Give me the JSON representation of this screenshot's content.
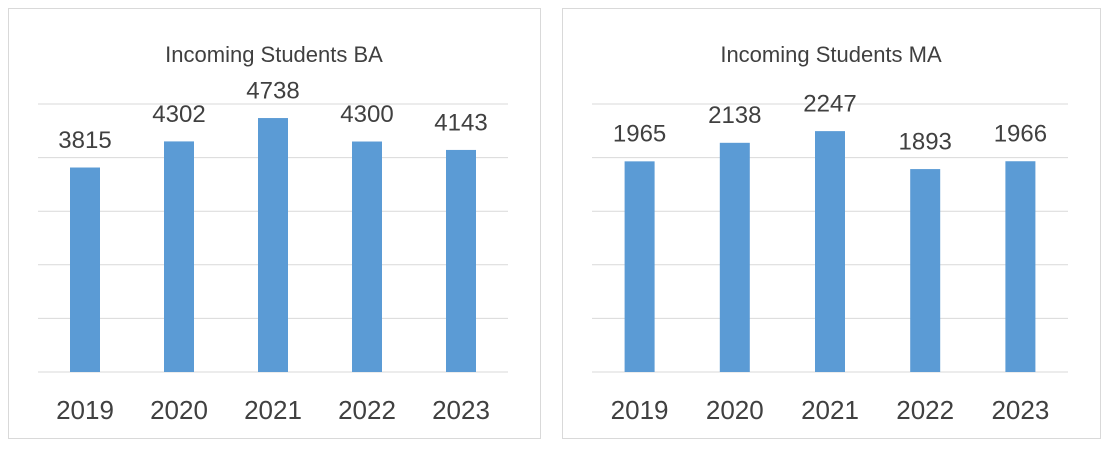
{
  "chart_data": [
    {
      "type": "bar",
      "title": "Incoming Students BA",
      "categories": [
        "2019",
        "2020",
        "2021",
        "2022",
        "2023"
      ],
      "values": [
        3815,
        4302,
        4738,
        4300,
        4143
      ],
      "color": "#5b9bd5",
      "ylim": [
        0,
        5000
      ],
      "yticks": [
        0,
        1000,
        2000,
        3000,
        4000,
        5000
      ],
      "grid": true
    },
    {
      "type": "bar",
      "title": "Incoming Students MA",
      "categories": [
        "2019",
        "2020",
        "2021",
        "2022",
        "2023"
      ],
      "values": [
        1965,
        2138,
        2247,
        1893,
        1966
      ],
      "color": "#5b9bd5",
      "ylim": [
        0,
        2500
      ],
      "yticks": [
        0,
        500,
        1000,
        1500,
        2000,
        2500
      ],
      "grid": true
    }
  ]
}
